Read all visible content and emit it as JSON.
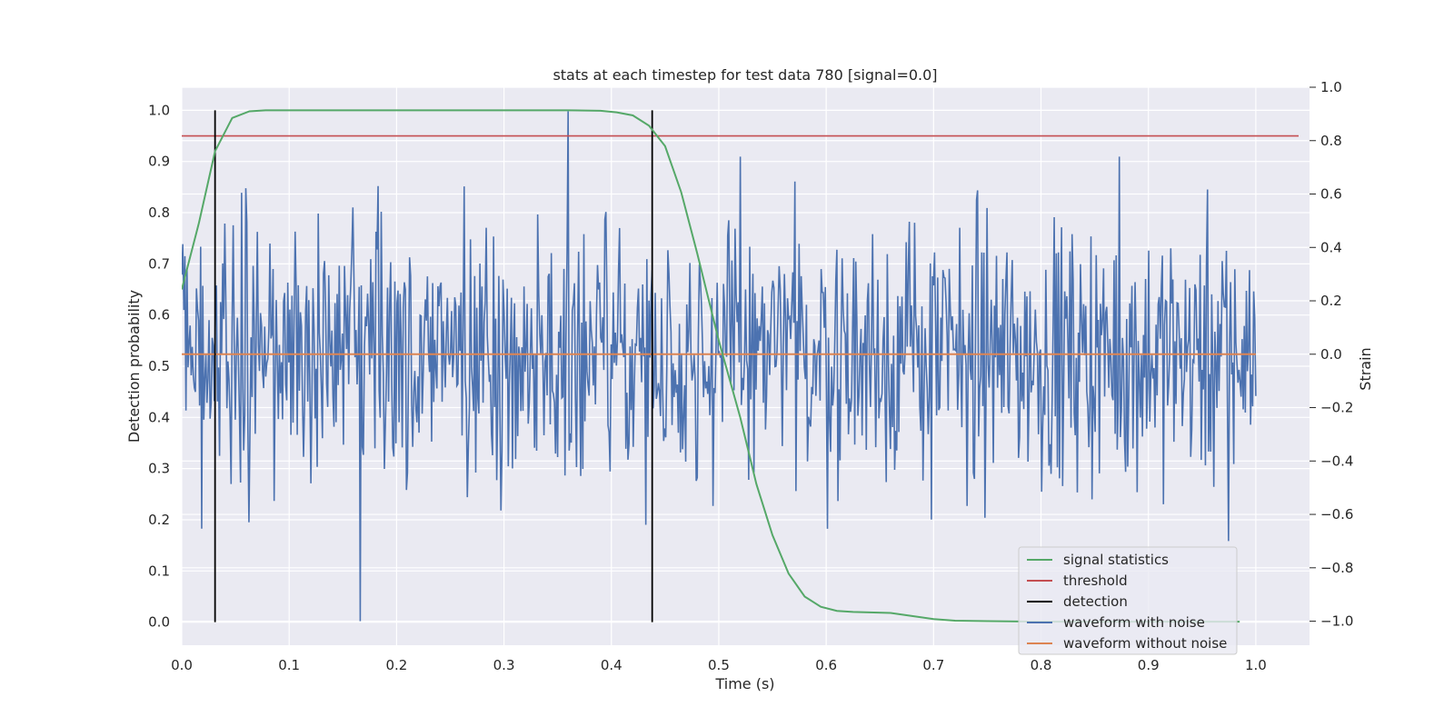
{
  "chart_data": {
    "type": "line",
    "title": "stats at each timestep for test data 780 [signal=0.0]",
    "xlabel": "Time (s)",
    "ylabel_left": "Detection probability",
    "ylabel_right": "Strain",
    "xlim": [
      0.0,
      1.05
    ],
    "ylim_left": [
      -0.045,
      1.045
    ],
    "ylim_right": [
      -1.09,
      1.0
    ],
    "xticks": [
      "0.0",
      "0.1",
      "0.2",
      "0.3",
      "0.4",
      "0.5",
      "0.6",
      "0.7",
      "0.8",
      "0.9",
      "1.0"
    ],
    "yticks_left": [
      "0.0",
      "0.1",
      "0.2",
      "0.3",
      "0.4",
      "0.5",
      "0.6",
      "0.7",
      "0.8",
      "0.9",
      "1.0"
    ],
    "yticks_right": [
      "−1.0",
      "−0.8",
      "−0.6",
      "−0.4",
      "−0.2",
      "0.0",
      "0.2",
      "0.4",
      "0.6",
      "0.8",
      "1.0"
    ],
    "grid": true,
    "legend_position": "lower-right",
    "legend": [
      "signal statistics",
      "threshold",
      "detection",
      "waveform with noise",
      "waveform without noise"
    ],
    "colors": {
      "signal": "#55a868",
      "threshold": "#c44e52",
      "detection": "#000000",
      "noise": "#4c72b0",
      "clean": "#dd8452",
      "axes_bg": "#eaeaf2",
      "grid": "#ffffff"
    },
    "signal_statistics": {
      "x": [
        0.0,
        0.016,
        0.031,
        0.047,
        0.063,
        0.078,
        0.094,
        0.11,
        0.2,
        0.3,
        0.36,
        0.39,
        0.405,
        0.42,
        0.435,
        0.45,
        0.465,
        0.48,
        0.5,
        0.52,
        0.535,
        0.55,
        0.565,
        0.58,
        0.595,
        0.61,
        0.625,
        0.66,
        0.68,
        0.7,
        0.72,
        0.75,
        0.8,
        0.9,
        0.985
      ],
      "y": [
        0.65,
        0.78,
        0.92,
        0.985,
        0.998,
        1.0,
        1.0,
        1.0,
        1.0,
        1.0,
        1.0,
        0.999,
        0.996,
        0.99,
        0.97,
        0.93,
        0.84,
        0.72,
        0.55,
        0.4,
        0.27,
        0.17,
        0.095,
        0.05,
        0.03,
        0.022,
        0.02,
        0.018,
        0.012,
        0.006,
        0.003,
        0.002,
        0.001,
        0.001,
        0.001
      ]
    },
    "threshold": 0.95,
    "detections": [
      0.031,
      0.438
    ],
    "waveform_with_noise": {
      "n_points": 1024,
      "x_range": [
        0.0,
        1.0
      ],
      "std": 0.24,
      "y_range": [
        -1.0,
        1.0
      ],
      "notable_peaks": [
        {
          "x": 0.166,
          "y": -1.0
        },
        {
          "x": 0.36,
          "y": 0.91
        },
        {
          "x": 0.52,
          "y": 0.74
        },
        {
          "x": 0.873,
          "y": 0.74
        },
        {
          "x": 0.975,
          "y": -0.7
        }
      ]
    },
    "waveform_without_noise": {
      "x": [
        0.0,
        1.0
      ],
      "y": [
        0.0,
        0.0
      ]
    }
  }
}
